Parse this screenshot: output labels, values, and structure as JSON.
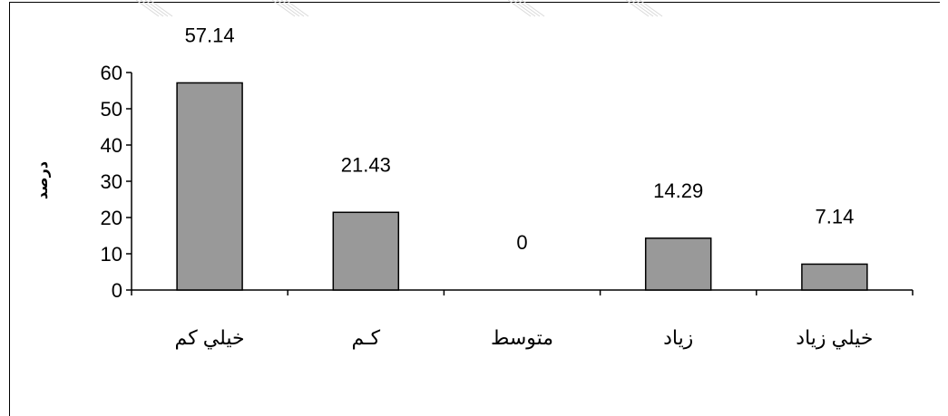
{
  "chart_data": {
    "type": "bar",
    "categories": [
      "خيلي كم",
      "كـم",
      "متوسط",
      "زياد",
      "خيلي زياد"
    ],
    "values": [
      57.14,
      21.43,
      0,
      14.29,
      7.14
    ],
    "data_labels": [
      "57.14",
      "21.43",
      "0",
      "14.29",
      "7.14"
    ],
    "ylabel": "درصد",
    "xlabel": "",
    "title": "",
    "ylim": [
      0,
      60
    ],
    "yticks": [
      0,
      10,
      20,
      30,
      40,
      50,
      60
    ],
    "grid": false,
    "legend": "none",
    "bar_color": "#999999"
  }
}
